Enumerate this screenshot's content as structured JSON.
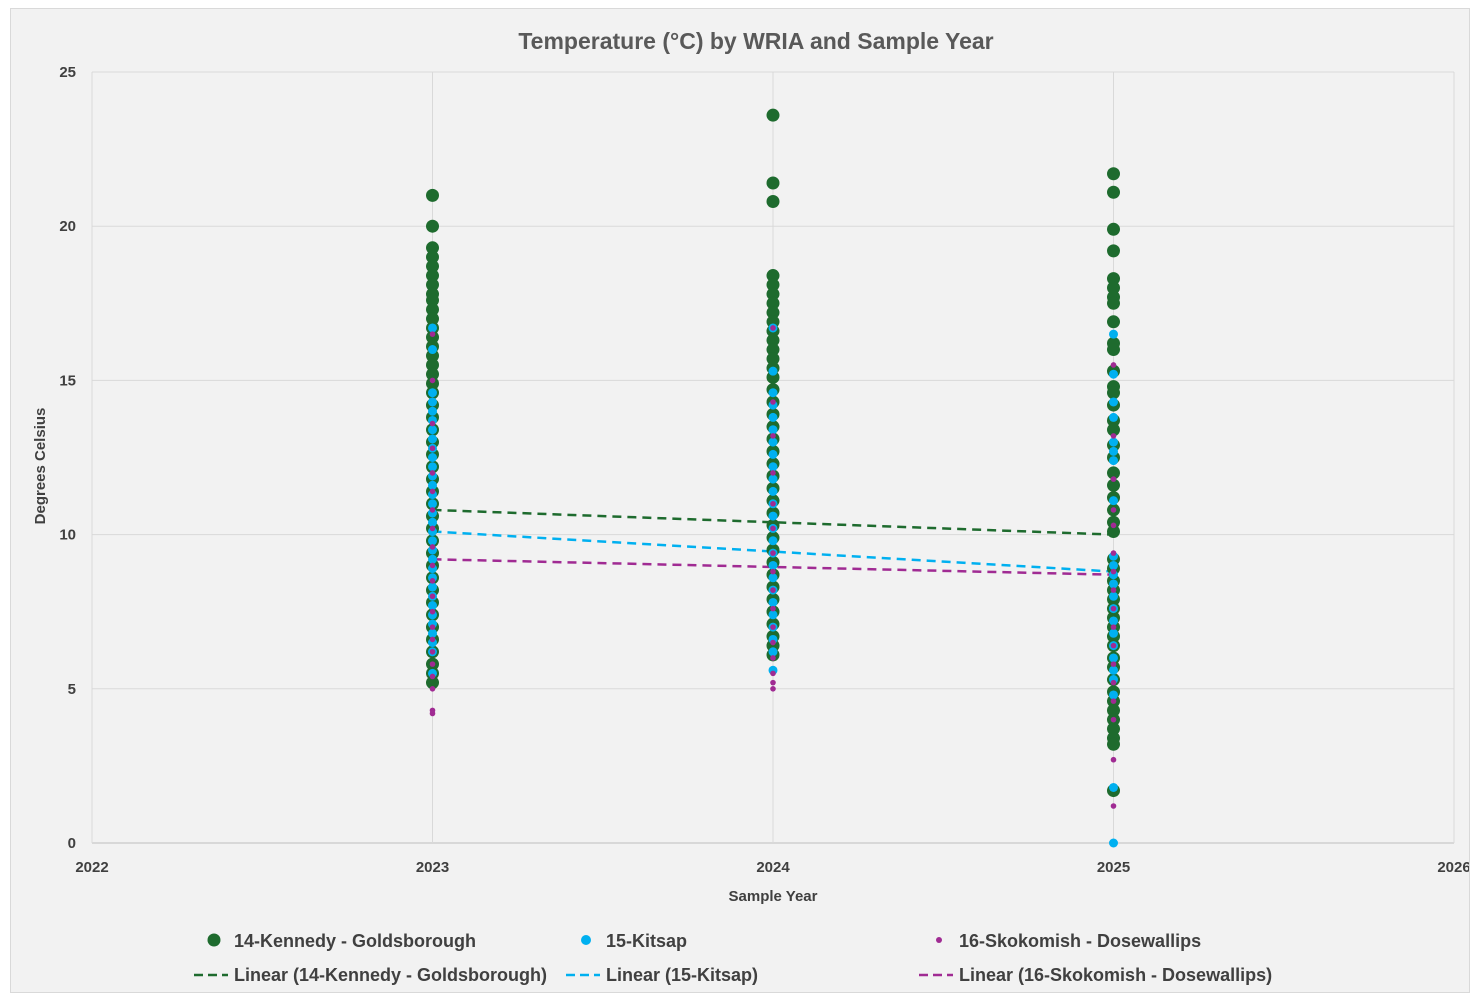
{
  "chart_data": {
    "type": "scatter",
    "title": "Temperature (°C) by WRIA and Sample Year",
    "xlabel": "Sample Year",
    "ylabel": "Degrees Celsius",
    "xlim": [
      2022,
      2026
    ],
    "ylim": [
      0,
      25
    ],
    "x_ticks": [
      "2022",
      "2023",
      "2024",
      "2025",
      "2026"
    ],
    "y_ticks": [
      "0",
      "5",
      "10",
      "15",
      "20",
      "25"
    ],
    "grid": true,
    "legend_position": "bottom",
    "series": [
      {
        "name": "14-Kennedy - Goldsborough",
        "color": "#1e6b2e",
        "marker": "large-circle",
        "points": [
          [
            2023,
            21.0
          ],
          [
            2023,
            20.0
          ],
          [
            2023,
            19.3
          ],
          [
            2023,
            19.0
          ],
          [
            2023,
            18.7
          ],
          [
            2023,
            18.4
          ],
          [
            2023,
            18.1
          ],
          [
            2023,
            17.8
          ],
          [
            2023,
            17.6
          ],
          [
            2023,
            17.3
          ],
          [
            2023,
            17.0
          ],
          [
            2023,
            16.7
          ],
          [
            2023,
            16.4
          ],
          [
            2023,
            16.1
          ],
          [
            2023,
            15.8
          ],
          [
            2023,
            15.5
          ],
          [
            2023,
            15.2
          ],
          [
            2023,
            14.9
          ],
          [
            2023,
            14.6
          ],
          [
            2023,
            14.2
          ],
          [
            2023,
            13.8
          ],
          [
            2023,
            13.4
          ],
          [
            2023,
            13.0
          ],
          [
            2023,
            12.6
          ],
          [
            2023,
            12.2
          ],
          [
            2023,
            11.8
          ],
          [
            2023,
            11.4
          ],
          [
            2023,
            11.0
          ],
          [
            2023,
            10.6
          ],
          [
            2023,
            10.2
          ],
          [
            2023,
            9.8
          ],
          [
            2023,
            9.4
          ],
          [
            2023,
            9.0
          ],
          [
            2023,
            8.6
          ],
          [
            2023,
            8.2
          ],
          [
            2023,
            7.8
          ],
          [
            2023,
            7.4
          ],
          [
            2023,
            7.0
          ],
          [
            2023,
            6.6
          ],
          [
            2023,
            6.2
          ],
          [
            2023,
            5.8
          ],
          [
            2023,
            5.5
          ],
          [
            2023,
            5.2
          ],
          [
            2024,
            23.6
          ],
          [
            2024,
            21.4
          ],
          [
            2024,
            20.8
          ],
          [
            2024,
            18.4
          ],
          [
            2024,
            18.1
          ],
          [
            2024,
            17.8
          ],
          [
            2024,
            17.5
          ],
          [
            2024,
            17.2
          ],
          [
            2024,
            16.9
          ],
          [
            2024,
            16.6
          ],
          [
            2024,
            16.3
          ],
          [
            2024,
            16.0
          ],
          [
            2024,
            15.7
          ],
          [
            2024,
            15.4
          ],
          [
            2024,
            15.1
          ],
          [
            2024,
            14.7
          ],
          [
            2024,
            14.3
          ],
          [
            2024,
            13.9
          ],
          [
            2024,
            13.5
          ],
          [
            2024,
            13.1
          ],
          [
            2024,
            12.7
          ],
          [
            2024,
            12.3
          ],
          [
            2024,
            11.9
          ],
          [
            2024,
            11.5
          ],
          [
            2024,
            11.1
          ],
          [
            2024,
            10.7
          ],
          [
            2024,
            10.3
          ],
          [
            2024,
            9.9
          ],
          [
            2024,
            9.5
          ],
          [
            2024,
            9.1
          ],
          [
            2024,
            8.7
          ],
          [
            2024,
            8.3
          ],
          [
            2024,
            7.9
          ],
          [
            2024,
            7.5
          ],
          [
            2024,
            7.1
          ],
          [
            2024,
            6.7
          ],
          [
            2024,
            6.4
          ],
          [
            2024,
            6.1
          ],
          [
            2025,
            21.7
          ],
          [
            2025,
            21.1
          ],
          [
            2025,
            19.9
          ],
          [
            2025,
            19.2
          ],
          [
            2025,
            18.3
          ],
          [
            2025,
            18.0
          ],
          [
            2025,
            17.7
          ],
          [
            2025,
            17.5
          ],
          [
            2025,
            16.9
          ],
          [
            2025,
            16.2
          ],
          [
            2025,
            16.0
          ],
          [
            2025,
            15.3
          ],
          [
            2025,
            14.8
          ],
          [
            2025,
            14.6
          ],
          [
            2025,
            14.2
          ],
          [
            2025,
            13.7
          ],
          [
            2025,
            13.4
          ],
          [
            2025,
            12.9
          ],
          [
            2025,
            12.5
          ],
          [
            2025,
            12.0
          ],
          [
            2025,
            11.6
          ],
          [
            2025,
            11.2
          ],
          [
            2025,
            10.8
          ],
          [
            2025,
            10.4
          ],
          [
            2025,
            10.1
          ],
          [
            2025,
            9.2
          ],
          [
            2025,
            8.9
          ],
          [
            2025,
            8.5
          ],
          [
            2025,
            8.2
          ],
          [
            2025,
            7.9
          ],
          [
            2025,
            7.6
          ],
          [
            2025,
            7.3
          ],
          [
            2025,
            7.0
          ],
          [
            2025,
            6.7
          ],
          [
            2025,
            6.4
          ],
          [
            2025,
            6.0
          ],
          [
            2025,
            5.7
          ],
          [
            2025,
            5.3
          ],
          [
            2025,
            4.9
          ],
          [
            2025,
            4.6
          ],
          [
            2025,
            4.3
          ],
          [
            2025,
            4.0
          ],
          [
            2025,
            3.7
          ],
          [
            2025,
            3.4
          ],
          [
            2025,
            3.2
          ],
          [
            2025,
            1.7
          ]
        ]
      },
      {
        "name": "15-Kitsap",
        "color": "#00b0f0",
        "marker": "medium-circle",
        "points": [
          [
            2023,
            16.7
          ],
          [
            2023,
            16.0
          ],
          [
            2023,
            14.6
          ],
          [
            2023,
            14.3
          ],
          [
            2023,
            14.0
          ],
          [
            2023,
            13.7
          ],
          [
            2023,
            13.4
          ],
          [
            2023,
            13.1
          ],
          [
            2023,
            12.8
          ],
          [
            2023,
            12.5
          ],
          [
            2023,
            12.2
          ],
          [
            2023,
            11.9
          ],
          [
            2023,
            11.6
          ],
          [
            2023,
            11.3
          ],
          [
            2023,
            11.0
          ],
          [
            2023,
            10.7
          ],
          [
            2023,
            10.4
          ],
          [
            2023,
            10.1
          ],
          [
            2023,
            9.8
          ],
          [
            2023,
            9.5
          ],
          [
            2023,
            9.2
          ],
          [
            2023,
            8.9
          ],
          [
            2023,
            8.6
          ],
          [
            2023,
            8.3
          ],
          [
            2023,
            8.0
          ],
          [
            2023,
            7.7
          ],
          [
            2023,
            7.4
          ],
          [
            2023,
            7.1
          ],
          [
            2023,
            6.8
          ],
          [
            2023,
            6.5
          ],
          [
            2023,
            6.2
          ],
          [
            2023,
            5.5
          ],
          [
            2024,
            16.7
          ],
          [
            2024,
            15.3
          ],
          [
            2024,
            14.6
          ],
          [
            2024,
            14.2
          ],
          [
            2024,
            13.8
          ],
          [
            2024,
            13.4
          ],
          [
            2024,
            13.0
          ],
          [
            2024,
            12.6
          ],
          [
            2024,
            12.2
          ],
          [
            2024,
            11.8
          ],
          [
            2024,
            11.4
          ],
          [
            2024,
            11.0
          ],
          [
            2024,
            10.6
          ],
          [
            2024,
            10.2
          ],
          [
            2024,
            9.8
          ],
          [
            2024,
            9.4
          ],
          [
            2024,
            9.0
          ],
          [
            2024,
            8.6
          ],
          [
            2024,
            8.2
          ],
          [
            2024,
            7.8
          ],
          [
            2024,
            7.4
          ],
          [
            2024,
            7.0
          ],
          [
            2024,
            6.6
          ],
          [
            2024,
            6.2
          ],
          [
            2024,
            5.6
          ],
          [
            2025,
            16.5
          ],
          [
            2025,
            15.2
          ],
          [
            2025,
            14.3
          ],
          [
            2025,
            13.8
          ],
          [
            2025,
            13.0
          ],
          [
            2025,
            12.7
          ],
          [
            2025,
            12.4
          ],
          [
            2025,
            11.1
          ],
          [
            2025,
            9.3
          ],
          [
            2025,
            9.0
          ],
          [
            2025,
            8.7
          ],
          [
            2025,
            8.4
          ],
          [
            2025,
            8.0
          ],
          [
            2025,
            7.6
          ],
          [
            2025,
            7.2
          ],
          [
            2025,
            6.8
          ],
          [
            2025,
            6.4
          ],
          [
            2025,
            6.0
          ],
          [
            2025,
            5.6
          ],
          [
            2025,
            5.3
          ],
          [
            2025,
            4.8
          ],
          [
            2025,
            1.8
          ],
          [
            2025,
            0.0
          ]
        ]
      },
      {
        "name": "16-Skokomish - Dosewallips",
        "color": "#a02b93",
        "marker": "small-circle",
        "points": [
          [
            2023,
            16.5
          ],
          [
            2023,
            15.0
          ],
          [
            2023,
            13.6
          ],
          [
            2023,
            12.8
          ],
          [
            2023,
            12.0
          ],
          [
            2023,
            11.4
          ],
          [
            2023,
            10.8
          ],
          [
            2023,
            10.2
          ],
          [
            2023,
            9.6
          ],
          [
            2023,
            9.0
          ],
          [
            2023,
            8.5
          ],
          [
            2023,
            8.0
          ],
          [
            2023,
            7.5
          ],
          [
            2023,
            7.0
          ],
          [
            2023,
            6.6
          ],
          [
            2023,
            6.2
          ],
          [
            2023,
            5.8
          ],
          [
            2023,
            5.4
          ],
          [
            2023,
            5.0
          ],
          [
            2023,
            4.3
          ],
          [
            2023,
            4.2
          ],
          [
            2024,
            16.7
          ],
          [
            2024,
            14.3
          ],
          [
            2024,
            13.2
          ],
          [
            2024,
            12.0
          ],
          [
            2024,
            11.0
          ],
          [
            2024,
            10.2
          ],
          [
            2024,
            9.4
          ],
          [
            2024,
            8.8
          ],
          [
            2024,
            8.2
          ],
          [
            2024,
            7.6
          ],
          [
            2024,
            7.0
          ],
          [
            2024,
            6.5
          ],
          [
            2024,
            6.0
          ],
          [
            2024,
            5.5
          ],
          [
            2024,
            5.2
          ],
          [
            2024,
            5.0
          ],
          [
            2025,
            15.5
          ],
          [
            2025,
            13.2
          ],
          [
            2025,
            11.8
          ],
          [
            2025,
            10.8
          ],
          [
            2025,
            10.3
          ],
          [
            2025,
            9.4
          ],
          [
            2025,
            8.8
          ],
          [
            2025,
            8.2
          ],
          [
            2025,
            7.6
          ],
          [
            2025,
            7.0
          ],
          [
            2025,
            6.4
          ],
          [
            2025,
            5.8
          ],
          [
            2025,
            5.2
          ],
          [
            2025,
            4.6
          ],
          [
            2025,
            4.0
          ],
          [
            2025,
            2.7
          ],
          [
            2025,
            1.2
          ]
        ]
      }
    ],
    "trendlines": [
      {
        "name": "Linear (14-Kennedy - Goldsborough)",
        "color": "#1e6b2e",
        "style": "dashed",
        "x": [
          2023,
          2025
        ],
        "y": [
          10.8,
          10.0
        ]
      },
      {
        "name": "Linear (15-Kitsap)",
        "color": "#00b0f0",
        "style": "dashed",
        "x": [
          2023,
          2025
        ],
        "y": [
          10.1,
          8.8
        ]
      },
      {
        "name": "Linear (16-Skokomish - Dosewallips)",
        "color": "#a02b93",
        "style": "dashed",
        "x": [
          2023,
          2025
        ],
        "y": [
          9.2,
          8.7
        ]
      }
    ],
    "legend": [
      {
        "label": "14-Kennedy - Goldsborough",
        "kind": "marker",
        "color": "#1e6b2e"
      },
      {
        "label": "15-Kitsap",
        "kind": "marker",
        "color": "#00b0f0"
      },
      {
        "label": "16-Skokomish - Dosewallips",
        "kind": "marker",
        "color": "#a02b93"
      },
      {
        "label": "Linear (14-Kennedy - Goldsborough)",
        "kind": "dash",
        "color": "#1e6b2e"
      },
      {
        "label": "Linear (15-Kitsap)",
        "kind": "dash",
        "color": "#00b0f0"
      },
      {
        "label": "Linear (16-Skokomish - Dosewallips)",
        "kind": "dash",
        "color": "#a02b93"
      }
    ]
  }
}
